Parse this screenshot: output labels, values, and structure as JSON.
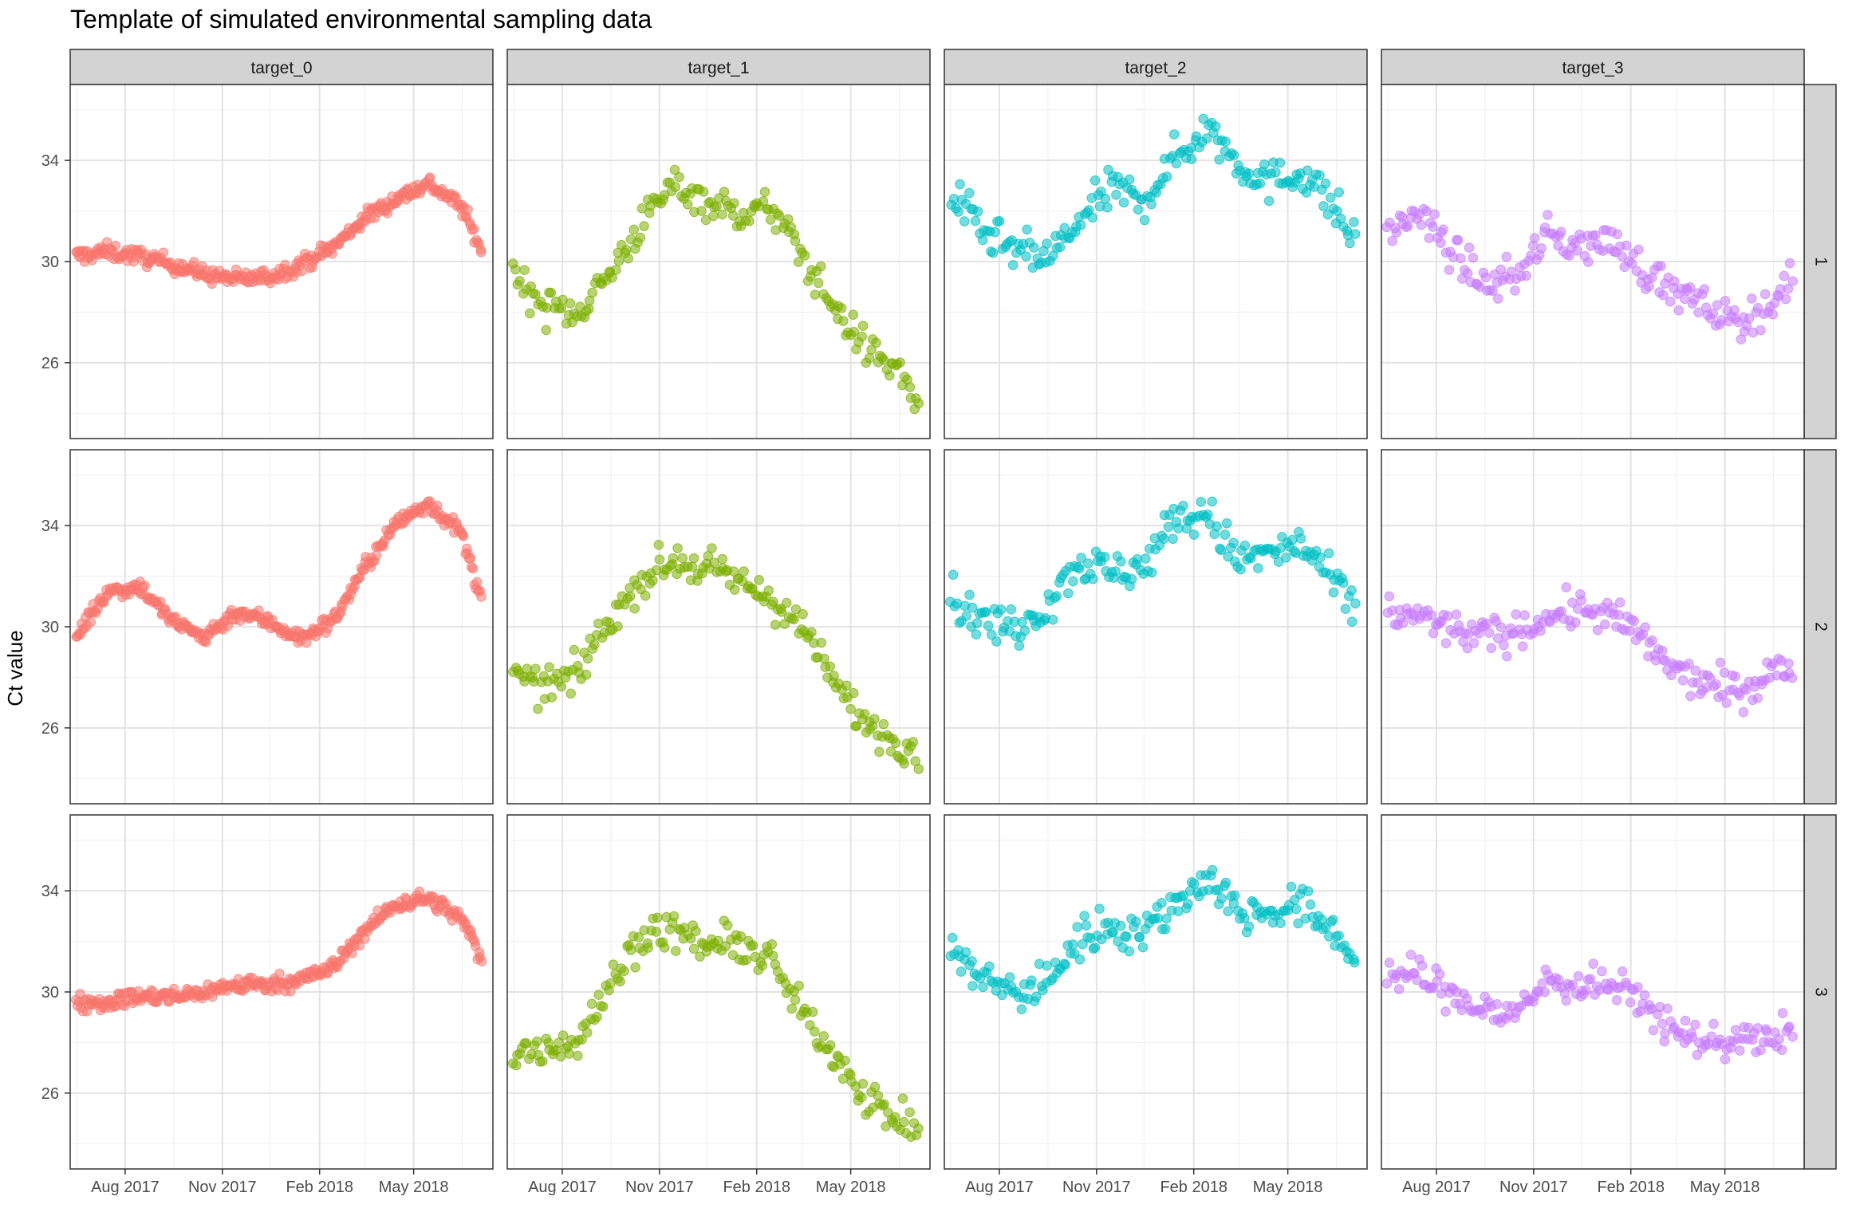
{
  "chart_data": {
    "type": "scatter",
    "title": "Template of simulated environmental sampling data",
    "xlabel": "",
    "ylabel": "Ct value",
    "facet_columns": [
      "target_0",
      "target_1",
      "target_2",
      "target_3"
    ],
    "facet_rows": [
      "1",
      "2",
      "3"
    ],
    "x_ticks": [
      "Aug 2017",
      "Nov 2017",
      "Feb 2018",
      "May 2018"
    ],
    "y_ticks": [
      26,
      30,
      34
    ],
    "x_range": [
      "2017-06-10",
      "2018-07-15"
    ],
    "ylim": [
      23,
      37
    ],
    "grid": true,
    "legend": "none",
    "colors": {
      "target_0": "#F8766D",
      "target_1": "#7CAE00",
      "target_2": "#00BFC4",
      "target_3": "#C77CFF"
    },
    "series": [
      {
        "facet_col": "target_0",
        "facet_row": "1",
        "x": [
          "2017-06-15",
          "2017-07-15",
          "2017-08-15",
          "2017-09-15",
          "2017-10-15",
          "2017-11-15",
          "2017-12-15",
          "2018-01-15",
          "2018-02-15",
          "2018-03-15",
          "2018-04-15",
          "2018-05-15",
          "2018-06-15",
          "2018-07-05"
        ],
        "y": [
          30.2,
          30.4,
          30.2,
          29.9,
          29.5,
          29.3,
          29.4,
          29.9,
          30.6,
          31.7,
          32.5,
          33.1,
          32.2,
          30.4
        ]
      },
      {
        "facet_col": "target_1",
        "facet_row": "1",
        "x": [
          "2017-06-15",
          "2017-07-15",
          "2017-08-15",
          "2017-09-15",
          "2017-10-15",
          "2017-11-15",
          "2017-12-15",
          "2018-01-15",
          "2018-02-15",
          "2018-03-15",
          "2018-04-15",
          "2018-05-15",
          "2018-06-15",
          "2018-07-05"
        ],
        "y": [
          29.6,
          28.2,
          28.0,
          29.5,
          31.5,
          33.1,
          32.4,
          31.9,
          32.1,
          30.3,
          28.2,
          26.6,
          25.7,
          24.2
        ]
      },
      {
        "facet_col": "target_2",
        "facet_row": "1",
        "x": [
          "2017-06-15",
          "2017-07-15",
          "2017-08-15",
          "2017-09-15",
          "2017-10-15",
          "2017-11-15",
          "2017-12-15",
          "2018-01-15",
          "2018-02-15",
          "2018-03-15",
          "2018-04-15",
          "2018-05-15",
          "2018-06-15",
          "2018-07-05"
        ],
        "y": [
          32.7,
          31.2,
          30.4,
          30.1,
          31.5,
          32.9,
          32.4,
          34.1,
          35.3,
          33.9,
          33.1,
          33.6,
          32.1,
          30.6
        ]
      },
      {
        "facet_col": "target_3",
        "facet_row": "1",
        "x": [
          "2017-06-15",
          "2017-07-15",
          "2017-08-15",
          "2017-09-15",
          "2017-10-15",
          "2017-11-15",
          "2017-12-15",
          "2018-01-15",
          "2018-02-15",
          "2018-03-15",
          "2018-04-15",
          "2018-05-15",
          "2018-06-15",
          "2018-07-05"
        ],
        "y": [
          31.2,
          31.9,
          30.4,
          29.1,
          29.4,
          31.1,
          30.6,
          30.8,
          29.6,
          28.8,
          28.1,
          27.6,
          28.4,
          29.3
        ]
      },
      {
        "facet_col": "target_0",
        "facet_row": "2",
        "x": [
          "2017-06-15",
          "2017-07-15",
          "2017-08-15",
          "2017-09-15",
          "2017-10-15",
          "2017-11-15",
          "2017-12-15",
          "2018-01-15",
          "2018-02-15",
          "2018-03-15",
          "2018-04-15",
          "2018-05-15",
          "2018-06-15",
          "2018-07-05"
        ],
        "y": [
          29.6,
          31.4,
          31.6,
          30.2,
          29.6,
          30.6,
          30.2,
          29.5,
          30.3,
          32.3,
          34.1,
          34.9,
          33.7,
          31.0
        ]
      },
      {
        "facet_col": "target_1",
        "facet_row": "2",
        "x": [
          "2017-06-15",
          "2017-07-15",
          "2017-08-15",
          "2017-09-15",
          "2017-10-15",
          "2017-11-15",
          "2017-12-15",
          "2018-01-15",
          "2018-02-15",
          "2018-03-15",
          "2018-04-15",
          "2018-05-15",
          "2018-06-15",
          "2018-07-05"
        ],
        "y": [
          28.0,
          27.6,
          28.1,
          30.3,
          31.9,
          32.6,
          32.3,
          31.8,
          31.1,
          30.0,
          27.8,
          26.2,
          25.5,
          25.0
        ]
      },
      {
        "facet_col": "target_2",
        "facet_row": "2",
        "x": [
          "2017-06-15",
          "2017-07-15",
          "2017-08-15",
          "2017-09-15",
          "2017-10-15",
          "2017-11-15",
          "2017-12-15",
          "2018-01-15",
          "2018-02-15",
          "2018-03-15",
          "2018-04-15",
          "2018-05-15",
          "2018-06-15",
          "2018-07-05"
        ],
        "y": [
          31.2,
          30.2,
          30.0,
          30.9,
          32.6,
          32.1,
          32.4,
          34.3,
          34.4,
          32.6,
          32.9,
          33.2,
          31.6,
          30.6
        ]
      },
      {
        "facet_col": "target_3",
        "facet_row": "2",
        "x": [
          "2017-06-15",
          "2017-07-15",
          "2017-08-15",
          "2017-09-15",
          "2017-10-15",
          "2017-11-15",
          "2017-12-15",
          "2018-01-15",
          "2018-02-15",
          "2018-03-15",
          "2018-04-15",
          "2018-05-15",
          "2018-06-15",
          "2018-07-05"
        ],
        "y": [
          30.6,
          30.4,
          29.9,
          29.6,
          29.8,
          30.4,
          30.7,
          30.4,
          29.4,
          28.2,
          27.7,
          27.4,
          28.2,
          28.4
        ]
      },
      {
        "facet_col": "target_0",
        "facet_row": "3",
        "x": [
          "2017-06-15",
          "2017-07-15",
          "2017-08-15",
          "2017-09-15",
          "2017-10-15",
          "2017-11-15",
          "2017-12-15",
          "2018-01-15",
          "2018-02-15",
          "2018-03-15",
          "2018-04-15",
          "2018-05-15",
          "2018-06-15",
          "2018-07-05"
        ],
        "y": [
          29.6,
          29.6,
          29.8,
          29.8,
          30.0,
          30.3,
          30.3,
          30.5,
          31.0,
          32.4,
          33.5,
          33.7,
          32.9,
          31.3
        ]
      },
      {
        "facet_col": "target_1",
        "facet_row": "3",
        "x": [
          "2017-06-15",
          "2017-07-15",
          "2017-08-15",
          "2017-09-15",
          "2017-10-15",
          "2017-11-15",
          "2017-12-15",
          "2018-01-15",
          "2018-02-15",
          "2018-03-15",
          "2018-04-15",
          "2018-05-15",
          "2018-06-15",
          "2018-07-05"
        ],
        "y": [
          27.4,
          27.9,
          28.0,
          30.2,
          32.3,
          32.4,
          31.8,
          31.9,
          31.2,
          29.2,
          27.6,
          25.9,
          24.8,
          24.7
        ]
      },
      {
        "facet_col": "target_2",
        "facet_row": "3",
        "x": [
          "2017-06-15",
          "2017-07-15",
          "2017-08-15",
          "2017-09-15",
          "2017-10-15",
          "2017-11-15",
          "2017-12-15",
          "2018-01-15",
          "2018-02-15",
          "2018-03-15",
          "2018-04-15",
          "2018-05-15",
          "2018-06-15",
          "2018-07-05"
        ],
        "y": [
          31.6,
          30.6,
          29.9,
          30.4,
          32.1,
          32.6,
          32.4,
          33.5,
          34.6,
          33.1,
          33.2,
          33.3,
          32.4,
          31.1
        ]
      },
      {
        "facet_col": "target_3",
        "facet_row": "3",
        "x": [
          "2017-06-15",
          "2017-07-15",
          "2017-08-15",
          "2017-09-15",
          "2017-10-15",
          "2017-11-15",
          "2017-12-15",
          "2018-01-15",
          "2018-02-15",
          "2018-03-15",
          "2018-04-15",
          "2018-05-15",
          "2018-06-15",
          "2018-07-05"
        ],
        "y": [
          30.6,
          30.7,
          29.9,
          29.3,
          29.1,
          30.5,
          30.2,
          30.3,
          29.5,
          28.4,
          28.0,
          28.2,
          28.0,
          28.6
        ]
      }
    ]
  }
}
